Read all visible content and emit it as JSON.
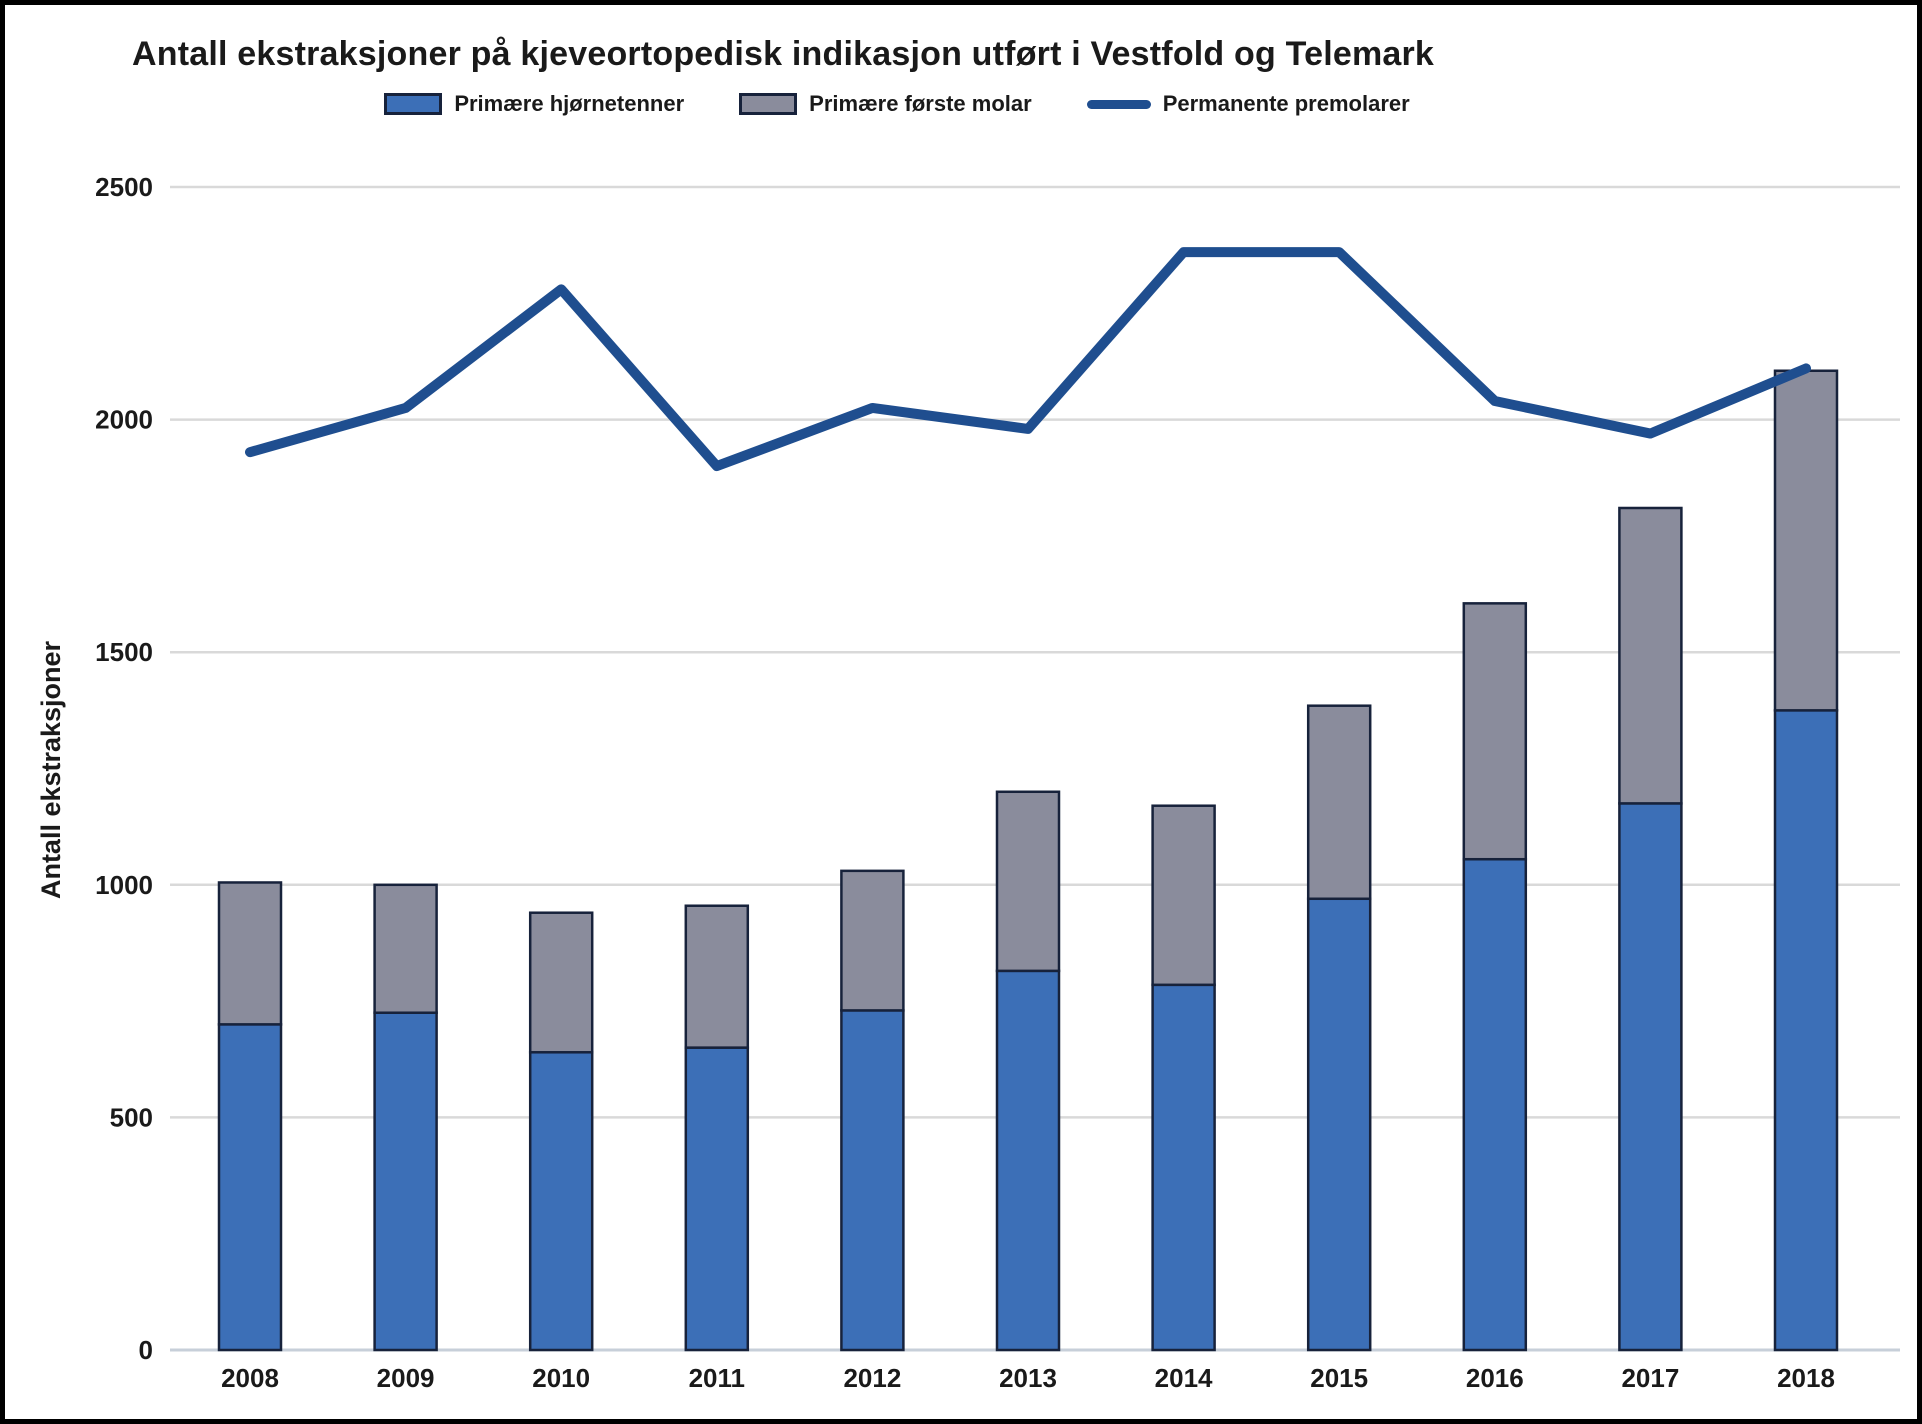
{
  "figure_title": "Antall ekstraksjoner på kjeveortopedisk indikasjon utført i Vestfold og Telemark",
  "chart_data": {
    "type": "bar",
    "subtype": "stacked-bar-with-line-overlay",
    "title": "Antall ekstraksjoner på kjeveortopedisk indikasjon utført i Vestfold og Telemark",
    "xlabel": "",
    "ylabel": "Antall ekstraksjoner",
    "ylim": [
      0,
      2500
    ],
    "ytick_step": 500,
    "yticks": [
      0,
      500,
      1000,
      1500,
      2000,
      2500
    ],
    "grid": true,
    "legend_position": "top",
    "categories": [
      "2008",
      "2009",
      "2010",
      "2011",
      "2012",
      "2013",
      "2014",
      "2015",
      "2016",
      "2017",
      "2018"
    ],
    "series": [
      {
        "name": "Primære hjørnetenner",
        "type": "bar",
        "stack": "extractions",
        "color": "#3C6FB7",
        "values": [
          700,
          725,
          640,
          650,
          730,
          815,
          785,
          970,
          1055,
          1175,
          1375
        ]
      },
      {
        "name": "Primære første molar",
        "type": "bar",
        "stack": "extractions",
        "color": "#8A8C9C",
        "values": [
          305,
          275,
          300,
          305,
          300,
          385,
          385,
          415,
          550,
          635,
          730
        ]
      },
      {
        "name": "Permanente premolarer",
        "type": "line",
        "color": "#1F4E8F",
        "values": [
          1930,
          2025,
          2280,
          1900,
          2025,
          1980,
          2360,
          2360,
          2040,
          1970,
          2110
        ]
      }
    ],
    "stacked_totals": [
      1005,
      1000,
      940,
      955,
      1030,
      1200,
      1170,
      1385,
      1605,
      1810,
      2105
    ]
  },
  "style_colors": {
    "bar_border": "#17223B",
    "gridline": "#D9D9D9",
    "baseline": "#C7CFD9",
    "text": "#1a1a1a",
    "background": "#ffffff",
    "frame_border": "#000000"
  }
}
